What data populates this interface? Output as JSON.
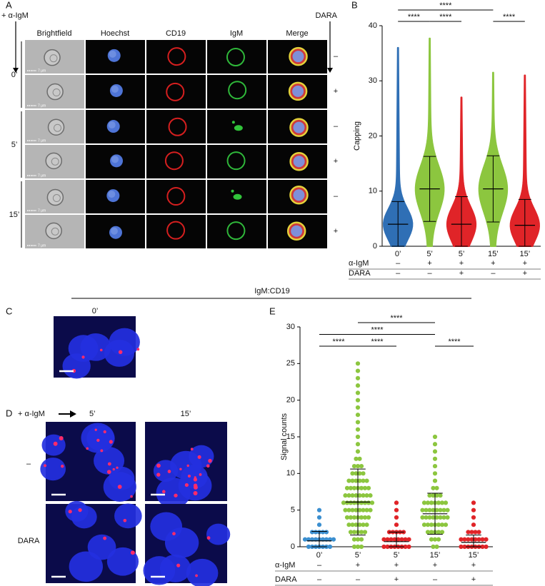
{
  "panel_labels": [
    "A",
    "B",
    "C",
    "D",
    "E"
  ],
  "panel_a": {
    "stimulus_label": "+ α-IgM",
    "drug_label": "DARA",
    "columns": [
      "Brightfield",
      "Hoechst",
      "CD19",
      "IgM",
      "Merge"
    ],
    "time_labels": [
      "0’",
      "5’",
      "15’"
    ],
    "drug_signs": [
      "–",
      "+",
      "–",
      "+",
      "–",
      "+"
    ],
    "scale_bar": "7 μm"
  },
  "section_title": "IgM:CD19",
  "panel_c": {
    "time_label": "0’"
  },
  "panel_d": {
    "stimulus_label": "+ α-IgM",
    "time_labels": [
      "5’",
      "15’"
    ],
    "row_labels": [
      "–",
      "DARA"
    ]
  },
  "chart_data": [
    {
      "type": "violin",
      "y_label": "Capping",
      "categories": [
        "0’",
        "5’",
        "5’",
        "15’",
        "15’"
      ],
      "colors": [
        "#2f6fb5",
        "#8cc63f",
        "#e02428",
        "#8cc63f",
        "#e02428"
      ],
      "ylim": [
        0,
        40
      ],
      "yticks": [
        0,
        10,
        20,
        30,
        40
      ],
      "mean": [
        4,
        10.4,
        4,
        10.4,
        3.8
      ],
      "sd_upper": [
        8.1,
        16.3,
        9,
        16.4,
        8.5
      ],
      "sd_lower": [
        0,
        4.5,
        0,
        4.4,
        0
      ],
      "max": [
        36,
        37.7,
        27,
        31.5,
        31
      ],
      "conditions": [
        {
          "label": "α-IgM",
          "signs": [
            "–",
            "+",
            "+",
            "+",
            "+"
          ]
        },
        {
          "label": "DARA",
          "signs": [
            "–",
            "–",
            "+",
            "–",
            "+"
          ]
        }
      ],
      "comparisons": [
        {
          "groups": [
            0,
            3
          ],
          "label": "****"
        },
        {
          "groups": [
            0,
            1
          ],
          "label": "****"
        },
        {
          "groups": [
            1,
            2
          ],
          "label": "****"
        },
        {
          "groups": [
            3,
            4
          ],
          "label": "****"
        }
      ]
    },
    {
      "type": "dot",
      "y_label": "Signal counts",
      "categories": [
        "0’",
        "5’",
        "5’",
        "15’",
        "15’"
      ],
      "colors": [
        "#3b8fd0",
        "#8cc63f",
        "#e02428",
        "#8cc63f",
        "#e02428"
      ],
      "ylim": [
        0,
        30
      ],
      "yticks": [
        0,
        5,
        10,
        15,
        20,
        25,
        30
      ],
      "mean": [
        0.8,
        6.1,
        0.7,
        4.5,
        0.6
      ],
      "sd_upper": [
        2.1,
        10.6,
        2.0,
        7.3,
        1.6
      ],
      "sd_lower": [
        0,
        1.6,
        0,
        1.7,
        0
      ],
      "max": [
        5,
        25,
        6,
        15,
        6
      ],
      "conditions": [
        {
          "label": "α-IgM",
          "signs": [
            "–",
            "+",
            "+",
            "+",
            "+"
          ]
        },
        {
          "label": "DARA",
          "signs": [
            "–",
            "–",
            "+",
            "–",
            "+"
          ]
        }
      ],
      "comparisons": [
        {
          "groups": [
            1,
            3
          ],
          "label": "****"
        },
        {
          "groups": [
            0,
            3
          ],
          "label": "****"
        },
        {
          "groups": [
            0,
            1
          ],
          "label": "****"
        },
        {
          "groups": [
            1,
            2
          ],
          "label": "****"
        },
        {
          "groups": [
            3,
            4
          ],
          "label": "****"
        }
      ]
    }
  ]
}
